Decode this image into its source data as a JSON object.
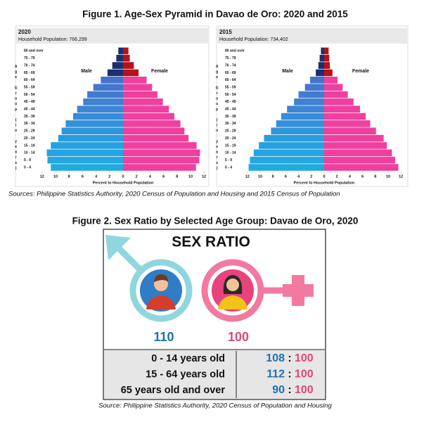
{
  "figure1": {
    "title": "Figure 1. Age-Sex Pyramid in Davao de Oro: 2020 and 2015",
    "source": "Sources: Philippine Statistics Authority, 2020 Census of Population and Housing and 2015 Census of Population"
  },
  "chart_data": [
    {
      "type": "pyramid",
      "title": "2020",
      "subtitle": "Household Population: 766,299",
      "xlabel": "Percent to Household Population",
      "ylabel": "Age Group (in years)",
      "categories": [
        "0 - 4",
        "5 - 9",
        "10 - 14",
        "15 - 19",
        "20 - 24",
        "25 - 29",
        "30 - 34",
        "35 - 39",
        "40 - 44",
        "45 - 49",
        "50 - 54",
        "55 - 59",
        "60 - 64",
        "65 - 69",
        "70 - 74",
        "75 - 79",
        "80 and over"
      ],
      "xlim": [
        0,
        12
      ],
      "xticks": [
        0,
        2,
        4,
        6,
        8,
        10,
        12
      ],
      "series": [
        {
          "name": "Male",
          "colors": [
            "#21aae2",
            "#22a7e1",
            "#24a4e0",
            "#27a0df",
            "#2c9bdd",
            "#3096db",
            "#3491d9",
            "#388bd7",
            "#3c86d4",
            "#3f81d2",
            "#427cd0",
            "#4477ce",
            "#4672cb",
            "#1b2f6e",
            "#1b2f6e",
            "#1b2f6e",
            "#1b2f6e"
          ],
          "values": [
            10.7,
            11.2,
            11.3,
            10.7,
            9.6,
            9.1,
            8.5,
            7.4,
            6.8,
            5.9,
            5.3,
            4.4,
            3.3,
            2.3,
            1.6,
            1.0,
            0.7
          ]
        },
        {
          "name": "Female",
          "colors": [
            "#ef3f9f",
            "#ef3f9f",
            "#ef3f9f",
            "#ef3f9f",
            "#ef3f9f",
            "#ef3f9f",
            "#ef3f9f",
            "#ef3f9f",
            "#ef3f9f",
            "#ef3f9f",
            "#ef3f9f",
            "#ef3f9f",
            "#ef3f9f",
            "#b5121b",
            "#b5121b",
            "#b5121b",
            "#b5121b"
          ],
          "values": [
            10.8,
            11.3,
            11.4,
            10.9,
            9.7,
            9.1,
            8.5,
            7.6,
            6.8,
            5.9,
            5.1,
            4.3,
            3.5,
            2.3,
            1.6,
            1.0,
            0.8
          ]
        }
      ]
    },
    {
      "type": "pyramid",
      "title": "2015",
      "subtitle": "Household Population: 734,402",
      "xlabel": "Percent to Household Population",
      "ylabel": "Age Group (in years)",
      "categories": [
        "0 - 4",
        "5 - 9",
        "10 - 14",
        "15 - 19",
        "20 - 24",
        "25 - 29",
        "30 - 34",
        "35 - 39",
        "40 - 44",
        "45 - 49",
        "50 - 54",
        "55 - 59",
        "60 - 64",
        "65 - 69",
        "70 - 74",
        "75 - 79",
        "80 and over"
      ],
      "xlim": [
        0,
        12
      ],
      "xticks": [
        0,
        2,
        4,
        6,
        8,
        10,
        12
      ],
      "series": [
        {
          "name": "Male",
          "colors": [
            "#21aae2",
            "#22a7e1",
            "#24a4e0",
            "#27a0df",
            "#2c9bdd",
            "#3096db",
            "#3491d9",
            "#388bd7",
            "#3c86d4",
            "#3f81d2",
            "#427cd0",
            "#4477ce",
            "#4672cb",
            "#1b2f6e",
            "#1b2f6e",
            "#1b2f6e",
            "#1b2f6e"
          ],
          "values": [
            11.8,
            11.6,
            11.0,
            10.2,
            9.4,
            8.3,
            7.5,
            6.7,
            5.8,
            4.7,
            4.0,
            3.0,
            2.2,
            1.3,
            0.9,
            0.7,
            0.5
          ]
        },
        {
          "name": "Female",
          "colors": [
            "#ef3f9f",
            "#ef3f9f",
            "#ef3f9f",
            "#ef3f9f",
            "#ef3f9f",
            "#ef3f9f",
            "#ef3f9f",
            "#ef3f9f",
            "#ef3f9f",
            "#ef3f9f",
            "#ef3f9f",
            "#ef3f9f",
            "#ef3f9f",
            "#b5121b",
            "#b5121b",
            "#b5121b",
            "#b5121b"
          ],
          "values": [
            11.6,
            11.1,
            10.6,
            9.8,
            9.3,
            8.1,
            7.2,
            6.5,
            5.6,
            4.6,
            3.7,
            2.9,
            2.1,
            1.3,
            0.9,
            0.8,
            0.7
          ]
        }
      ]
    }
  ],
  "figure2": {
    "title": "Figure 2. Sex Ratio by Selected Age Group: Davao de Oro, 2020",
    "heading": "SEX RATIO",
    "male_total": "110",
    "female_total": "100",
    "separator": ":",
    "rows": [
      {
        "label": "0 - 14 years old",
        "male": "108",
        "female": "100"
      },
      {
        "label": "15 - 64 years old",
        "male": "112",
        "female": "100"
      },
      {
        "label": "65 years old and over",
        "male": "90",
        "female": "100"
      }
    ],
    "source": "Source: Philippine Statistics Authority, 2020 Census of Population and Housing"
  }
}
